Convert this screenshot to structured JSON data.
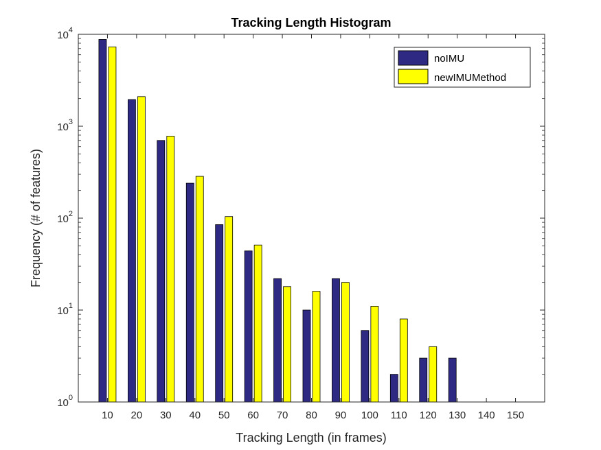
{
  "chart_data": {
    "type": "bar",
    "title": "Tracking Length Histogram",
    "xlabel": "Tracking Length (in frames)",
    "ylabel": "Frequency (# of features)",
    "yscale": "log",
    "ylim": [
      1,
      10000
    ],
    "yticks": [
      {
        "value": 1,
        "base": "10",
        "exp": "0"
      },
      {
        "value": 10,
        "base": "10",
        "exp": "1"
      },
      {
        "value": 100,
        "base": "10",
        "exp": "2"
      },
      {
        "value": 1000,
        "base": "10",
        "exp": "3"
      },
      {
        "value": 10000,
        "base": "10",
        "exp": "4"
      }
    ],
    "categories": [
      "10",
      "20",
      "30",
      "40",
      "50",
      "60",
      "70",
      "80",
      "90",
      "100",
      "110",
      "120",
      "130",
      "140",
      "150"
    ],
    "series": [
      {
        "name": "noIMU",
        "color": "#2e2a84",
        "values": [
          8800,
          1950,
          700,
          240,
          85,
          44,
          22,
          10,
          22,
          6,
          2,
          3,
          3,
          0,
          0
        ]
      },
      {
        "name": "newIMUMethod",
        "color": "#ffff00",
        "values": [
          7300,
          2100,
          780,
          285,
          104,
          51,
          18,
          16,
          20,
          11,
          8,
          4,
          0,
          0,
          0
        ]
      }
    ],
    "legend_position": "top-right",
    "grid": false
  }
}
